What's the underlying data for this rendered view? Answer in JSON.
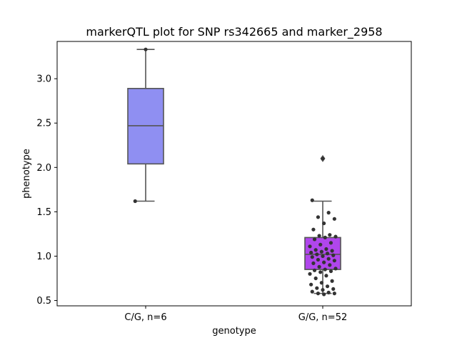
{
  "chart_data": {
    "type": "box",
    "title": "markerQTL plot for SNP rs342665 and marker_2958",
    "xlabel": "genotype",
    "ylabel": "phenotype",
    "ylim": [
      0.44,
      3.42
    ],
    "yticks": [
      0.5,
      1.0,
      1.5,
      2.0,
      2.5,
      3.0
    ],
    "ytick_labels": [
      "0.5",
      "1.0",
      "1.5",
      "2.0",
      "2.5",
      "3.0"
    ],
    "categories": [
      "C/G, n=6",
      "G/G, n=52"
    ],
    "colors": {
      "box_1": "#8f8ff2",
      "box_2": "#b046ec",
      "box_edge": "#545454",
      "points": "#333333"
    },
    "boxes": [
      {
        "category": "C/G, n=6",
        "q1": 2.04,
        "median": 2.47,
        "q3": 2.89,
        "whisker_low": 1.62,
        "whisker_high": 3.33,
        "outliers": []
      },
      {
        "category": "G/G, n=52",
        "q1": 0.85,
        "median": 1.02,
        "q3": 1.21,
        "whisker_low": 0.58,
        "whisker_high": 1.62,
        "outliers": [
          2.1
        ]
      }
    ],
    "points": [
      {
        "category": "C/G, n=6",
        "values": [
          3.33,
          1.62
        ]
      },
      {
        "category": "G/G, n=52",
        "values": [
          2.1,
          1.63,
          1.49,
          1.44,
          1.42,
          1.37,
          1.3,
          1.24,
          1.23,
          1.22,
          1.21,
          1.19,
          1.15,
          1.13,
          1.11,
          1.08,
          1.07,
          1.06,
          1.05,
          1.04,
          1.03,
          1.02,
          1.01,
          1.0,
          0.99,
          0.97,
          0.96,
          0.95,
          0.93,
          0.92,
          0.9,
          0.88,
          0.86,
          0.85,
          0.84,
          0.83,
          0.82,
          0.8,
          0.78,
          0.75,
          0.72,
          0.7,
          0.68,
          0.66,
          0.64,
          0.63,
          0.62,
          0.6,
          0.59,
          0.58,
          0.58,
          0.57
        ]
      }
    ]
  }
}
